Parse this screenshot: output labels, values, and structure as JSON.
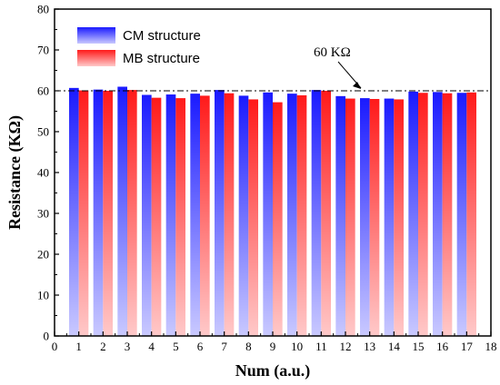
{
  "chart_data": {
    "type": "bar",
    "xlabel": "Num (a.u.)",
    "ylabel": "Resistance (KΩ)",
    "xlim": [
      0,
      18
    ],
    "ylim": [
      0,
      80
    ],
    "x_ticks": [
      "0",
      "1",
      "2",
      "3",
      "4",
      "5",
      "6",
      "7",
      "8",
      "9",
      "10",
      "11",
      "12",
      "13",
      "14",
      "15",
      "16",
      "17",
      "18"
    ],
    "y_ticks": [
      "0",
      "10",
      "20",
      "30",
      "40",
      "50",
      "60",
      "70",
      "80"
    ],
    "categories": [
      1,
      2,
      3,
      4,
      5,
      6,
      7,
      8,
      9,
      10,
      11,
      12,
      13,
      14,
      15,
      16,
      17
    ],
    "series": [
      {
        "name": "CM structure",
        "color": "#1a1aff",
        "values": [
          60.7,
          60.3,
          61.0,
          59.0,
          59.1,
          59.3,
          60.2,
          58.8,
          59.6,
          59.3,
          60.2,
          58.7,
          58.2,
          58.1,
          59.8,
          59.7,
          59.5
        ]
      },
      {
        "name": "MB structure",
        "color": "#ff1a1a",
        "values": [
          60.1,
          60.0,
          60.2,
          58.3,
          58.2,
          58.8,
          59.4,
          57.9,
          57.2,
          58.9,
          60.0,
          58.1,
          58.0,
          57.9,
          59.5,
          59.4,
          59.6
        ]
      }
    ],
    "reference_line": {
      "value": 60,
      "style": "dash-dot",
      "label": "60 KΩ"
    },
    "legend": {
      "position": "top-left"
    },
    "grid": false
  }
}
